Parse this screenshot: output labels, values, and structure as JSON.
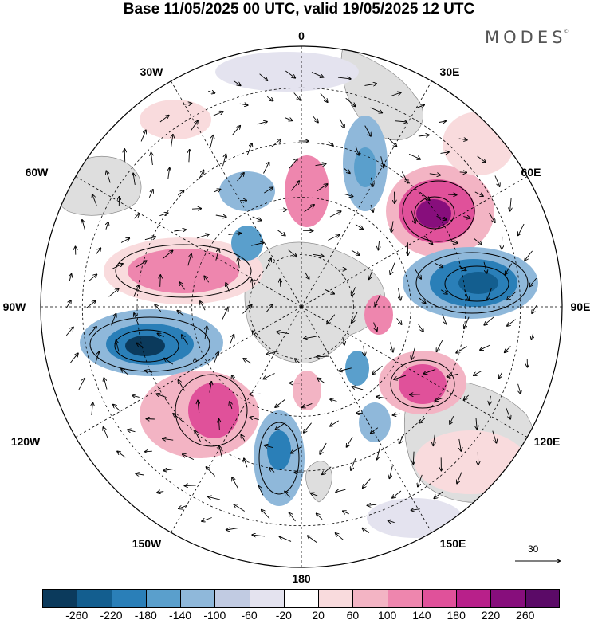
{
  "title": "Base 11/05/2025 00 UTC, valid 19/05/2025 12 UTC",
  "brand": "MODES",
  "brand_mark": "©",
  "map": {
    "projection": "polar stereographic, south pole",
    "longitude_labels": [
      "0",
      "30E",
      "60E",
      "90E",
      "120E",
      "150E",
      "180",
      "150W",
      "120W",
      "90W",
      "60W",
      "30W"
    ],
    "vector_scale_label": "30"
  },
  "colorbar": {
    "ticks": [
      "-260",
      "-220",
      "-180",
      "-140",
      "-100",
      "-60",
      "-20",
      "20",
      "60",
      "100",
      "140",
      "180",
      "220",
      "260"
    ],
    "colors": [
      "#0b3a5c",
      "#135e8f",
      "#2a7fb8",
      "#5a9fcc",
      "#8fb8da",
      "#c1cbe2",
      "#e4e3ef",
      "#ffffff",
      "#f9dbdd",
      "#f3b4c4",
      "#ee86ae",
      "#e0519a",
      "#b8208a",
      "#870e7c",
      "#5b0a67"
    ]
  }
}
